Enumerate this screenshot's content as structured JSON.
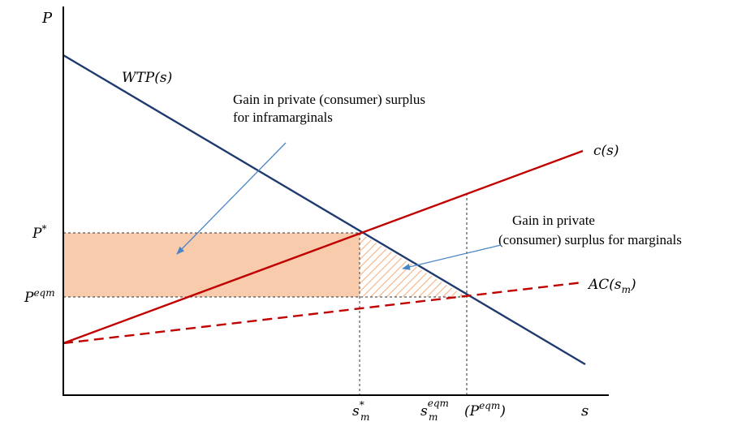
{
  "axes": {
    "y_label": "P",
    "x_label": "s"
  },
  "curves": {
    "wtp": {
      "label": "WTP(s)",
      "color": "#1f3a6e"
    },
    "cost": {
      "label": "c(s)",
      "color": "#c00000"
    },
    "ac": {
      "label": "AC",
      "subscript_label": "(s",
      "subscript": "m",
      "close": ")",
      "color": "#c00000",
      "style": "dashed"
    }
  },
  "price_levels": {
    "p_star": {
      "base": "P",
      "sup": "*"
    },
    "p_eqm": {
      "base": "P",
      "sup": "eqm"
    }
  },
  "quantity_levels": {
    "s_star": {
      "base": "s",
      "sub": "m",
      "sup": "*"
    },
    "s_eqm": {
      "base": "s",
      "sub": "m",
      "sup": "eqm",
      "paren_open": "(P",
      "paren_sup": "eqm",
      "paren_close": ")"
    }
  },
  "annotations": {
    "inframarginal": {
      "lines": [
        "Gain in private (consumer) surplus",
        "for inframarginals"
      ]
    },
    "marginal": {
      "lines": [
        "Gain in private",
        "(consumer) surplus for marginals"
      ]
    }
  },
  "colors": {
    "surplus_fill": "#f8cbad",
    "surplus_hatch": "#f4b183",
    "arrow": "#4a86c5",
    "axis": "#000000"
  }
}
